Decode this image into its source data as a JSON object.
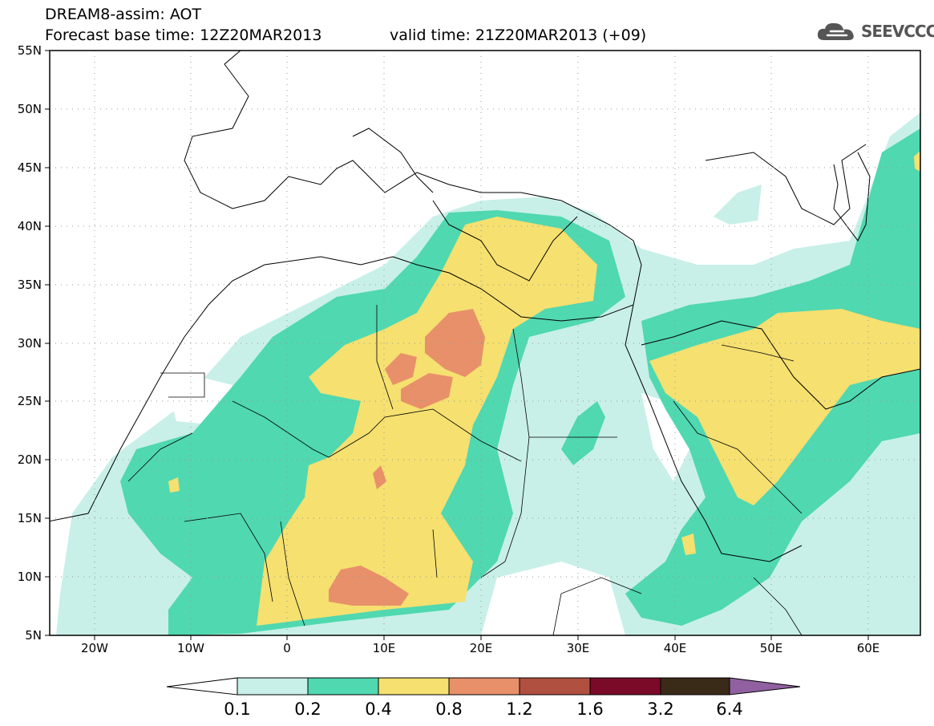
{
  "header": {
    "model_title": "DREAM8-assim: AOT",
    "base_time": "Forecast base time: 12Z20MAR2013",
    "valid_time": "valid time: 21Z20MAR2013 (+09)"
  },
  "logo": {
    "icon": "cloud-icon",
    "text": "SEEVCCC"
  },
  "map": {
    "lon_range": [
      -25,
      65
    ],
    "lat_range": [
      5,
      55
    ],
    "x_ticks": [
      "20W",
      "10W",
      "0",
      "10E",
      "20E",
      "30E",
      "40E",
      "50E",
      "60E"
    ],
    "y_ticks": [
      "55N",
      "50N",
      "45N",
      "40N",
      "35N",
      "30N",
      "25N",
      "20N",
      "15N",
      "10N",
      "5N"
    ],
    "grid": "dotted"
  },
  "colorbar": {
    "labels": [
      "0.1",
      "0.2",
      "0.4",
      "0.8",
      "1.2",
      "1.6",
      "3.2",
      "6.4"
    ],
    "colors": [
      "#c8f0e8",
      "#50d8b0",
      "#f5e070",
      "#e8906a",
      "#b05040",
      "#7a0a28",
      "#3a2a18",
      "#9060a0"
    ]
  },
  "colors": {
    "aot_0_1": "#c8f0e8",
    "aot_0_2": "#50d8b0",
    "aot_0_4": "#f5e070",
    "aot_0_8": "#e8906a"
  }
}
